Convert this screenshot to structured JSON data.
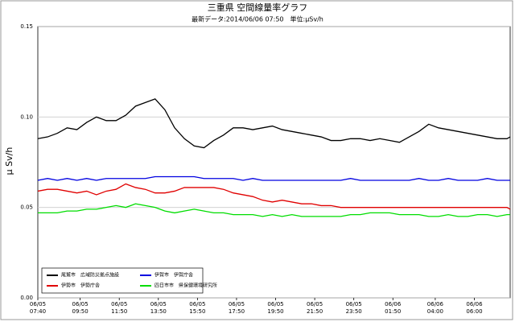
{
  "chart_data": {
    "type": "line",
    "title": "三重県 空間線量率グラフ",
    "subtitle": "最新データ:2014/06/06 07:50　単位:μSv/h",
    "y_label": "μ Sv/h",
    "x": [
      "06/05 07:40",
      "06/05 08:10",
      "06/05 08:40",
      "06/05 09:10",
      "06/05 09:40",
      "06/05 10:10",
      "06/05 10:40",
      "06/05 11:10",
      "06/05 11:40",
      "06/05 12:10",
      "06/05 12:40",
      "06/05 13:10",
      "06/05 13:40",
      "06/05 14:10",
      "06/05 14:40",
      "06/05 15:10",
      "06/05 15:40",
      "06/05 16:10",
      "06/05 16:40",
      "06/05 17:10",
      "06/05 17:40",
      "06/05 18:10",
      "06/05 18:40",
      "06/05 19:10",
      "06/05 19:40",
      "06/05 20:10",
      "06/05 20:40",
      "06/05 21:10",
      "06/05 21:40",
      "06/05 22:10",
      "06/05 22:40",
      "06/05 23:10",
      "06/05 23:40",
      "06/06 00:10",
      "06/06 00:40",
      "06/06 01:10",
      "06/06 01:40",
      "06/06 02:10",
      "06/06 02:40",
      "06/06 03:10",
      "06/06 03:40",
      "06/06 04:10",
      "06/06 04:40",
      "06/06 05:10",
      "06/06 05:40",
      "06/06 06:10",
      "06/06 06:40",
      "06/06 07:10",
      "06/06 07:40",
      "06/06 07:50"
    ],
    "series": [
      {
        "name": "尾鷲市　広域防災拠点施設",
        "color": "#000000",
        "values": [
          0.088,
          0.089,
          0.091,
          0.094,
          0.093,
          0.097,
          0.1,
          0.098,
          0.098,
          0.101,
          0.106,
          0.108,
          0.11,
          0.104,
          0.094,
          0.088,
          0.084,
          0.083,
          0.087,
          0.09,
          0.094,
          0.094,
          0.093,
          0.094,
          0.095,
          0.093,
          0.092,
          0.091,
          0.09,
          0.089,
          0.087,
          0.087,
          0.088,
          0.088,
          0.087,
          0.088,
          0.087,
          0.086,
          0.089,
          0.092,
          0.096,
          0.094,
          0.093,
          0.092,
          0.091,
          0.09,
          0.089,
          0.088,
          0.088,
          0.089
        ]
      },
      {
        "name": "伊賀市　伊賀庁舎",
        "color": "#0000e0",
        "values": [
          0.065,
          0.066,
          0.065,
          0.066,
          0.065,
          0.066,
          0.065,
          0.066,
          0.066,
          0.066,
          0.066,
          0.066,
          0.067,
          0.067,
          0.067,
          0.067,
          0.067,
          0.066,
          0.066,
          0.066,
          0.066,
          0.065,
          0.066,
          0.065,
          0.065,
          0.065,
          0.065,
          0.065,
          0.065,
          0.065,
          0.065,
          0.065,
          0.066,
          0.065,
          0.065,
          0.065,
          0.065,
          0.065,
          0.065,
          0.066,
          0.065,
          0.065,
          0.066,
          0.065,
          0.065,
          0.065,
          0.066,
          0.065,
          0.065,
          0.065
        ]
      },
      {
        "name": "伊勢市　伊勢庁舎",
        "color": "#e00000",
        "values": [
          0.059,
          0.06,
          0.06,
          0.059,
          0.058,
          0.059,
          0.057,
          0.059,
          0.06,
          0.063,
          0.061,
          0.06,
          0.058,
          0.058,
          0.059,
          0.061,
          0.061,
          0.061,
          0.061,
          0.06,
          0.058,
          0.057,
          0.056,
          0.054,
          0.053,
          0.054,
          0.053,
          0.052,
          0.052,
          0.051,
          0.051,
          0.05,
          0.05,
          0.05,
          0.05,
          0.05,
          0.05,
          0.05,
          0.05,
          0.05,
          0.05,
          0.05,
          0.05,
          0.05,
          0.05,
          0.05,
          0.05,
          0.05,
          0.05,
          0.049
        ]
      },
      {
        "name": "四日市市　県保健環境研究所",
        "color": "#00dd00",
        "values": [
          0.047,
          0.047,
          0.047,
          0.048,
          0.048,
          0.049,
          0.049,
          0.05,
          0.051,
          0.05,
          0.052,
          0.051,
          0.05,
          0.048,
          0.047,
          0.048,
          0.049,
          0.048,
          0.047,
          0.047,
          0.046,
          0.046,
          0.046,
          0.045,
          0.046,
          0.045,
          0.046,
          0.045,
          0.045,
          0.045,
          0.045,
          0.045,
          0.046,
          0.046,
          0.047,
          0.047,
          0.047,
          0.046,
          0.046,
          0.046,
          0.045,
          0.045,
          0.046,
          0.045,
          0.045,
          0.046,
          0.046,
          0.045,
          0.046,
          0.046
        ]
      }
    ],
    "xlim": [
      "06/05 07:40",
      "06/06 07:50"
    ],
    "xticks": [
      "06/05 07:40",
      "06/05 09:50",
      "06/05 11:50",
      "06/05 13:50",
      "06/05 15:50",
      "06/05 17:50",
      "06/05 19:50",
      "06/05 21:50",
      "06/05 23:50",
      "06/06 01:50",
      "06/06 04:00",
      "06/06 06:00"
    ],
    "ylim": [
      0,
      0.15
    ],
    "yticks": [
      {
        "value": 0,
        "label": "0.00"
      },
      {
        "value": 0.05,
        "label": "0.05"
      },
      {
        "value": 0.1,
        "label": "0.10"
      },
      {
        "value": 0.15,
        "label": "0.15"
      }
    ],
    "grid": true,
    "legend": "lower left"
  }
}
